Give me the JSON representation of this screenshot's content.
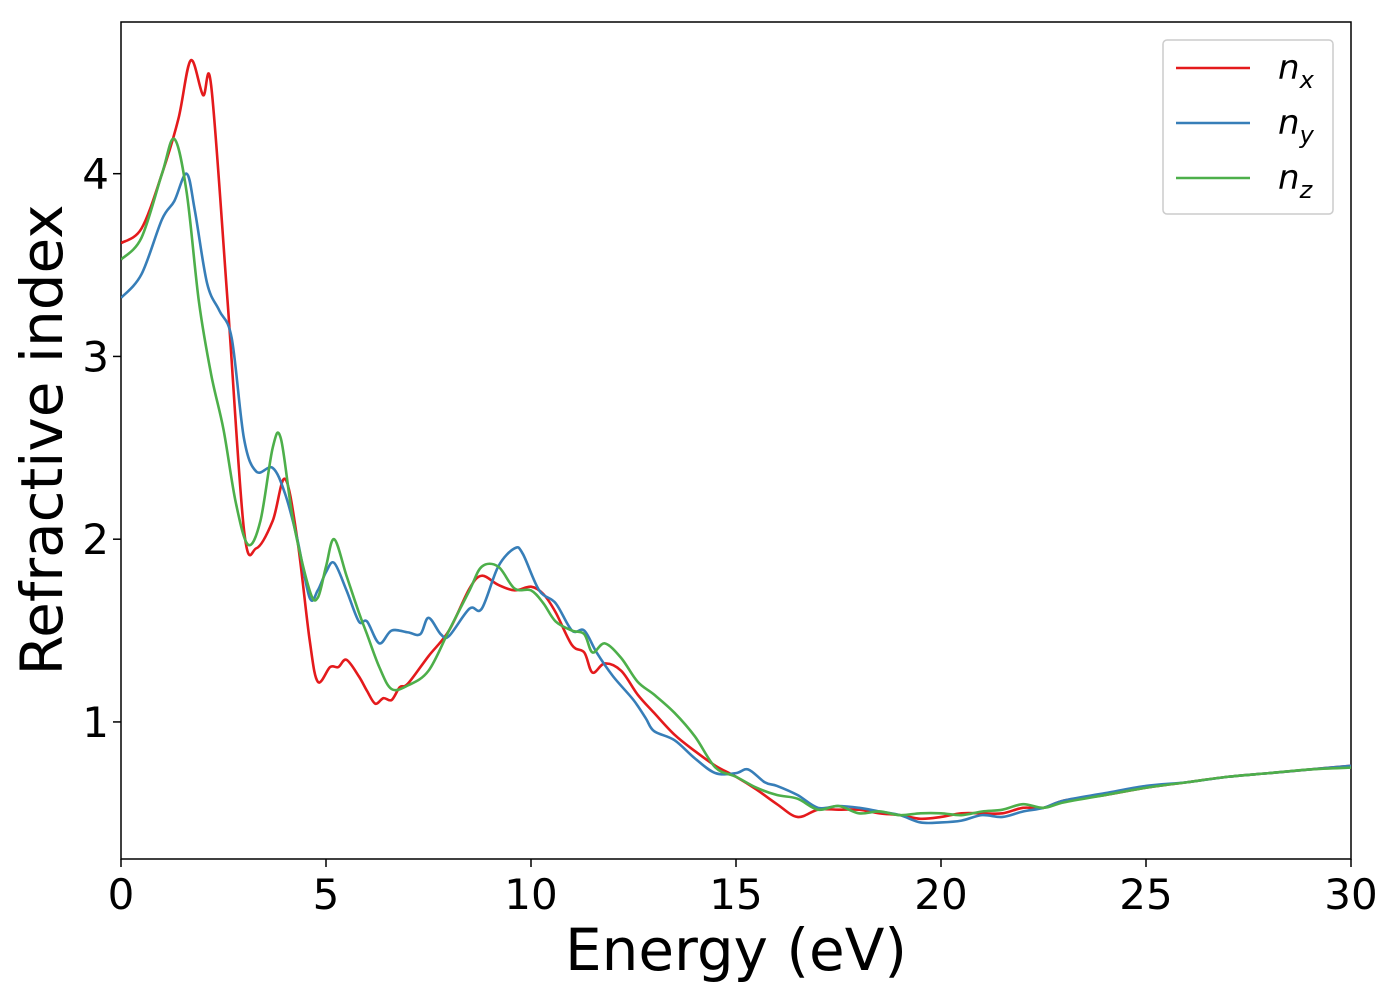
{
  "chart_data": {
    "type": "line",
    "title": "",
    "xlabel": "Energy (eV)",
    "ylabel": "Refractive index",
    "xlim": [
      0,
      30
    ],
    "ylim": [
      0.25,
      4.83
    ],
    "xticks": [
      0,
      5,
      10,
      15,
      20,
      25,
      30
    ],
    "yticks": [
      1,
      2,
      3,
      4
    ],
    "grid": false,
    "legend_position": "top-right",
    "series": [
      {
        "name": "n_x",
        "legend_main": "n",
        "legend_sub": "x",
        "color": "#e41a1c",
        "x": [
          0,
          0.5,
          1.0,
          1.4,
          1.7,
          2.0,
          2.2,
          2.6,
          3.0,
          3.3,
          3.7,
          4.0,
          4.3,
          4.6,
          4.8,
          5.1,
          5.3,
          5.5,
          5.8,
          6.0,
          6.2,
          6.4,
          6.6,
          6.8,
          7.0,
          7.5,
          8.0,
          8.5,
          8.8,
          9.2,
          9.6,
          10.0,
          10.3,
          10.6,
          11.0,
          11.3,
          11.5,
          11.8,
          12.2,
          12.6,
          13.0,
          13.5,
          14.0,
          14.5,
          15.0,
          15.5,
          16.0,
          16.5,
          17.0,
          17.5,
          18.0,
          18.5,
          19.0,
          19.5,
          20.0,
          20.5,
          21.0,
          21.5,
          22.0,
          22.5,
          23.0,
          24.0,
          25.0,
          26.0,
          27.0,
          28.0,
          29.0,
          30.0
        ],
        "values": [
          3.62,
          3.7,
          4.0,
          4.3,
          4.62,
          4.43,
          4.48,
          3.3,
          2.05,
          1.95,
          2.1,
          2.33,
          2.0,
          1.45,
          1.22,
          1.3,
          1.3,
          1.34,
          1.25,
          1.17,
          1.1,
          1.13,
          1.12,
          1.19,
          1.21,
          1.36,
          1.5,
          1.73,
          1.8,
          1.75,
          1.72,
          1.74,
          1.7,
          1.6,
          1.42,
          1.38,
          1.27,
          1.32,
          1.28,
          1.15,
          1.05,
          0.93,
          0.84,
          0.76,
          0.7,
          0.63,
          0.55,
          0.48,
          0.52,
          0.52,
          0.52,
          0.5,
          0.49,
          0.47,
          0.48,
          0.5,
          0.5,
          0.5,
          0.53,
          0.53,
          0.57,
          0.6,
          0.64,
          0.67,
          0.7,
          0.72,
          0.74,
          0.76
        ]
      },
      {
        "name": "n_y",
        "legend_main": "n",
        "legend_sub": "y",
        "color": "#377eb8",
        "x": [
          0,
          0.5,
          1.0,
          1.3,
          1.6,
          1.8,
          2.1,
          2.4,
          2.7,
          3.0,
          3.3,
          3.7,
          4.0,
          4.3,
          4.6,
          4.8,
          5.0,
          5.2,
          5.5,
          5.8,
          6.0,
          6.3,
          6.6,
          7.0,
          7.3,
          7.5,
          7.8,
          8.0,
          8.5,
          8.8,
          9.2,
          9.6,
          9.8,
          10.2,
          10.6,
          11.0,
          11.3,
          11.6,
          12.0,
          12.5,
          12.8,
          13.0,
          13.5,
          14.0,
          14.5,
          15.0,
          15.3,
          15.7,
          16.0,
          16.5,
          17.0,
          17.5,
          18.0,
          18.5,
          19.0,
          19.5,
          20.0,
          20.5,
          21.0,
          21.5,
          22.0,
          22.5,
          23.0,
          24.0,
          25.0,
          26.0,
          27.0,
          28.0,
          29.0,
          30.0
        ],
        "values": [
          3.32,
          3.45,
          3.75,
          3.85,
          4.0,
          3.8,
          3.4,
          3.25,
          3.1,
          2.55,
          2.37,
          2.39,
          2.25,
          2.0,
          1.68,
          1.72,
          1.82,
          1.87,
          1.72,
          1.55,
          1.55,
          1.43,
          1.5,
          1.49,
          1.48,
          1.57,
          1.48,
          1.47,
          1.62,
          1.62,
          1.85,
          1.95,
          1.92,
          1.72,
          1.65,
          1.5,
          1.5,
          1.38,
          1.25,
          1.12,
          1.02,
          0.95,
          0.9,
          0.8,
          0.72,
          0.72,
          0.74,
          0.67,
          0.65,
          0.6,
          0.53,
          0.54,
          0.53,
          0.51,
          0.49,
          0.45,
          0.45,
          0.46,
          0.49,
          0.48,
          0.51,
          0.53,
          0.57,
          0.61,
          0.65,
          0.67,
          0.7,
          0.72,
          0.74,
          0.76
        ]
      },
      {
        "name": "n_z",
        "legend_main": "n",
        "legend_sub": "z",
        "color": "#4daf4a",
        "x": [
          0,
          0.5,
          1.0,
          1.3,
          1.6,
          1.9,
          2.2,
          2.5,
          2.8,
          3.1,
          3.4,
          3.7,
          3.9,
          4.2,
          4.6,
          4.8,
          5.0,
          5.2,
          5.5,
          5.8,
          6.0,
          6.3,
          6.6,
          7.0,
          7.5,
          8.0,
          8.5,
          8.8,
          9.2,
          9.6,
          10.0,
          10.3,
          10.6,
          11.0,
          11.3,
          11.5,
          11.8,
          12.2,
          12.6,
          13.0,
          13.5,
          14.0,
          14.5,
          15.0,
          15.5,
          16.0,
          16.5,
          17.0,
          17.5,
          18.0,
          18.5,
          19.0,
          19.5,
          20.0,
          20.5,
          21.0,
          21.5,
          22.0,
          22.5,
          23.0,
          24.0,
          25.0,
          26.0,
          27.0,
          28.0,
          29.0,
          30.0
        ],
        "values": [
          3.53,
          3.65,
          4.0,
          4.19,
          3.9,
          3.3,
          2.9,
          2.6,
          2.2,
          1.97,
          2.1,
          2.5,
          2.55,
          2.1,
          1.72,
          1.68,
          1.85,
          2.0,
          1.8,
          1.6,
          1.48,
          1.3,
          1.18,
          1.2,
          1.28,
          1.5,
          1.72,
          1.85,
          1.85,
          1.73,
          1.72,
          1.65,
          1.55,
          1.5,
          1.48,
          1.38,
          1.43,
          1.35,
          1.22,
          1.15,
          1.05,
          0.92,
          0.75,
          0.7,
          0.64,
          0.6,
          0.58,
          0.52,
          0.54,
          0.5,
          0.51,
          0.49,
          0.5,
          0.5,
          0.49,
          0.51,
          0.52,
          0.55,
          0.53,
          0.56,
          0.6,
          0.64,
          0.67,
          0.7,
          0.72,
          0.74,
          0.75
        ]
      }
    ]
  }
}
